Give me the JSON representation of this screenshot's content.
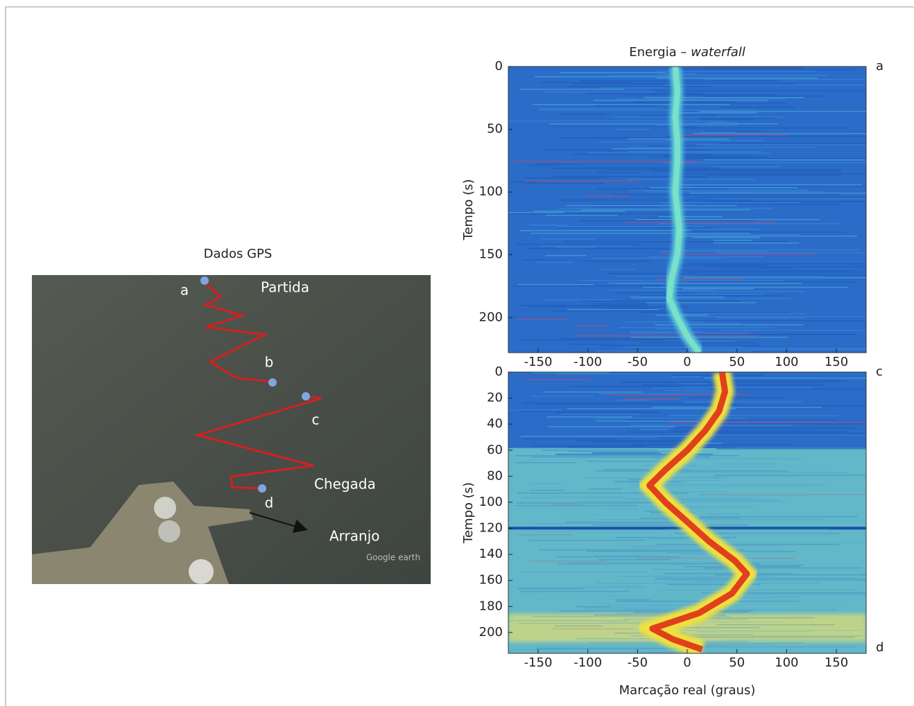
{
  "gps_panel": {
    "title": "Dados GPS",
    "labels": [
      "a",
      "b",
      "c",
      "d"
    ],
    "annotations": [
      "Partida",
      "Chegada",
      "Arranjo"
    ],
    "watermark": "Google earth"
  },
  "chart_data": [
    {
      "type": "heatmap",
      "title": "Energia –",
      "title_emphasis": "waterfall",
      "y_label": "Tempo (s)",
      "xlim": [
        -180,
        180
      ],
      "xticks": [
        -150,
        -100,
        -50,
        0,
        50,
        100,
        150
      ],
      "ylim": [
        0,
        228
      ],
      "yticks": [
        0,
        50,
        100,
        150,
        200
      ],
      "y_reversed": true,
      "corner_labels": [
        "a"
      ],
      "track": {
        "time": [
          0,
          20,
          40,
          60,
          75,
          100,
          130,
          150,
          170,
          185,
          200,
          215,
          228
        ],
        "bearing": [
          -12,
          -10,
          -12,
          -10,
          -10,
          -12,
          -8,
          -10,
          -16,
          -18,
          -10,
          0,
          12
        ]
      }
    },
    {
      "type": "heatmap",
      "y_label": "Tempo (s)",
      "x_label": "Marcação real (graus)",
      "xlim": [
        -180,
        180
      ],
      "xticks": [
        -150,
        -100,
        -50,
        0,
        50,
        100,
        150
      ],
      "ylim": [
        0,
        216
      ],
      "yticks": [
        0,
        20,
        40,
        60,
        80,
        100,
        120,
        140,
        160,
        180,
        200
      ],
      "y_reversed": true,
      "corner_labels": [
        "c",
        "d"
      ],
      "track": {
        "time": [
          0,
          15,
          30,
          45,
          60,
          75,
          87,
          100,
          115,
          130,
          145,
          155,
          170,
          185,
          197,
          205,
          213
        ],
        "bearing": [
          35,
          38,
          32,
          18,
          0,
          -22,
          -38,
          -22,
          0,
          22,
          48,
          60,
          45,
          12,
          -35,
          -15,
          15
        ]
      }
    }
  ]
}
